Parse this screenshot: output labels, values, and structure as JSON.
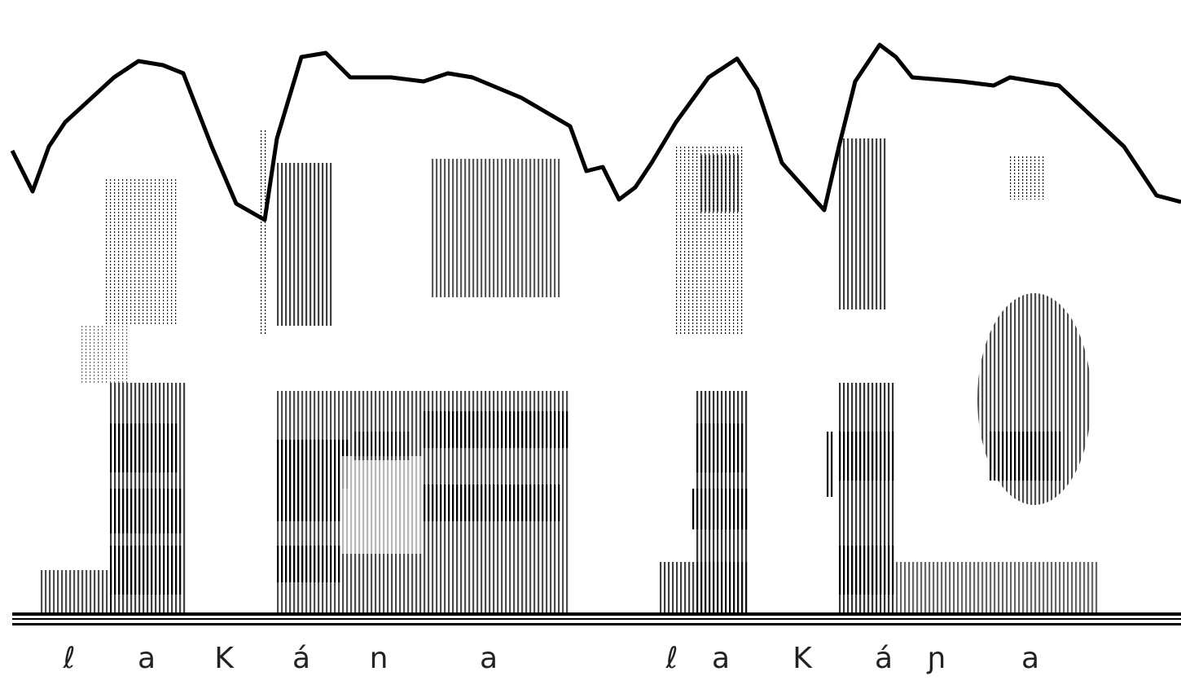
{
  "labels": [
    "ℓ",
    "a",
    "K",
    "á",
    "n",
    "a",
    "ℓ",
    "a",
    "K",
    "á",
    "ɲ",
    "a"
  ]
}
